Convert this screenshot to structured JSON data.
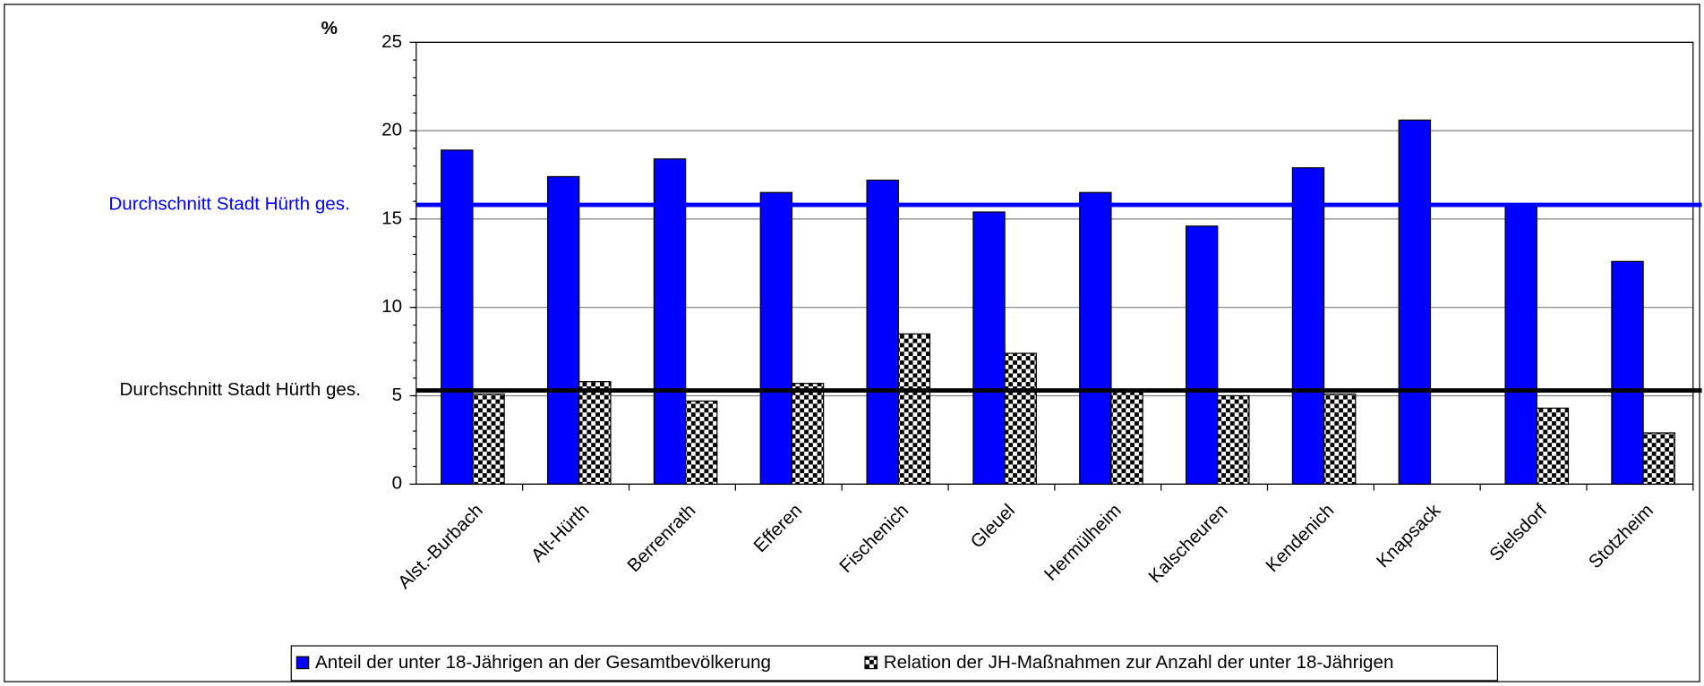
{
  "chart_data": {
    "type": "bar",
    "y_label": "%",
    "categories": [
      "Alst.-Burbach",
      "Alt-Hürth",
      "Berrenrath",
      "Efferen",
      "Fischenich",
      "Gleuel",
      "Hermülheim",
      "Kalscheuren",
      "Kendenich",
      "Knapsack",
      "Sielsdorf",
      "Stotzheim"
    ],
    "series": [
      {
        "name": "Anteil der unter 18-Jährigen an der Gesamtbevölkerung",
        "color": "#0000ff",
        "values": [
          18.9,
          17.4,
          18.4,
          16.5,
          17.2,
          15.4,
          16.5,
          14.6,
          17.9,
          20.6,
          15.8,
          12.6
        ]
      },
      {
        "name": "Relation der JH-Maßnahmen zur Anzahl der unter 18-Jährigen",
        "color": "checkered",
        "values": [
          5.1,
          5.8,
          4.7,
          5.7,
          8.5,
          7.4,
          5.3,
          5.0,
          5.1,
          null,
          4.3,
          2.9
        ]
      }
    ],
    "reference_lines": [
      {
        "label": "Durchschnitt Stadt Hürth ges.",
        "value": 15.8,
        "color": "#0000ff"
      },
      {
        "label": "Durchschnitt Stadt Hürth ges.",
        "value": 5.3,
        "color": "#000000"
      }
    ],
    "ylim": [
      0,
      25
    ],
    "yticks": [
      0,
      5,
      10,
      15,
      20,
      25
    ],
    "grid": true,
    "legend": "bottom"
  }
}
